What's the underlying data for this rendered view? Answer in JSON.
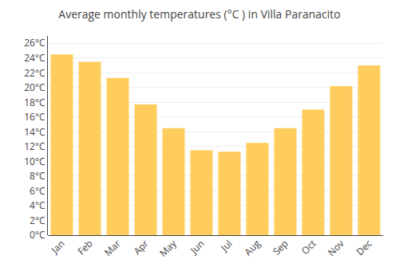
{
  "chart_data": {
    "type": "bar",
    "title": "Average monthly temperatures (°C ) in Villa Paranacito",
    "categories": [
      "Jan",
      "Feb",
      "Mar",
      "Apr",
      "May",
      "Jun",
      "Jul",
      "Aug",
      "Sep",
      "Oct",
      "Nov",
      "Dec"
    ],
    "values": [
      24.5,
      23.5,
      21.3,
      17.7,
      14.5,
      11.5,
      11.3,
      12.5,
      14.5,
      17.0,
      20.2,
      23.0
    ],
    "color": "#FFCD5E",
    "ylim": [
      0,
      27
    ],
    "yticks": [
      {
        "value": 0,
        "label": "0°C"
      },
      {
        "value": 2,
        "label": "2°C"
      },
      {
        "value": 4,
        "label": "4°C"
      },
      {
        "value": 6,
        "label": "6°C"
      },
      {
        "value": 8,
        "label": "8°C"
      },
      {
        "value": 10,
        "label": "10°C"
      },
      {
        "value": 12,
        "label": "12°C"
      },
      {
        "value": 14,
        "label": "14°C"
      },
      {
        "value": 16,
        "label": "16°C"
      },
      {
        "value": 18,
        "label": "18°C"
      },
      {
        "value": 20,
        "label": "20°C"
      },
      {
        "value": 22,
        "label": "22°C"
      },
      {
        "value": 24,
        "label": "24°C"
      },
      {
        "value": 26,
        "label": "26°C"
      }
    ],
    "grid": true
  }
}
